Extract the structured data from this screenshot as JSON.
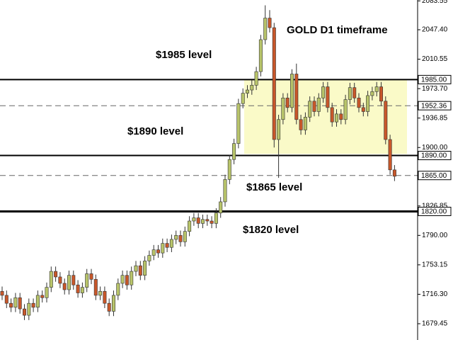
{
  "chart_data": {
    "type": "candlestick",
    "title": "GOLD D1 timeframe",
    "annotations": [
      "$1985 level",
      "$1890 level",
      "$1865 level",
      "$1820 level"
    ],
    "open": [
      1720,
      1715,
      1705,
      1700,
      1712,
      1698,
      1690,
      1705,
      1700,
      1715,
      1712,
      1725,
      1745,
      1738,
      1730,
      1722,
      1740,
      1728,
      1718,
      1725,
      1742,
      1735,
      1715,
      1720,
      1705,
      1695,
      1715,
      1730,
      1740,
      1728,
      1745,
      1752,
      1740,
      1758,
      1765,
      1772,
      1768,
      1780,
      1775,
      1785,
      1790,
      1782,
      1795,
      1808,
      1812,
      1805,
      1810,
      1808,
      1805,
      1818,
      1832,
      1860,
      1885,
      1905,
      1955,
      1968,
      1972,
      1978,
      1995,
      2035,
      2062,
      2050,
      1910,
      1935,
      1962,
      1950,
      1992,
      1935,
      1922,
      1938,
      1958,
      1945,
      1962,
      1976,
      1950,
      1932,
      1942,
      1935,
      1960,
      1975,
      1962,
      1950,
      1945,
      1965,
      1970,
      1976,
      1958,
      1910,
      1872
    ],
    "high": [
      1726,
      1721,
      1711,
      1718,
      1718,
      1704,
      1711,
      1711,
      1721,
      1721,
      1731,
      1751,
      1751,
      1744,
      1736,
      1746,
      1746,
      1734,
      1731,
      1748,
      1748,
      1741,
      1726,
      1726,
      1711,
      1721,
      1736,
      1746,
      1746,
      1751,
      1758,
      1758,
      1764,
      1771,
      1778,
      1778,
      1786,
      1786,
      1791,
      1796,
      1796,
      1801,
      1814,
      1818,
      1818,
      1816,
      1816,
      1814,
      1824,
      1838,
      1866,
      1891,
      1911,
      1961,
      1974,
      1978,
      1984,
      2001,
      2041,
      2078,
      2072,
      2056,
      1941,
      1968,
      1968,
      1998,
      2005,
      1941,
      1944,
      1964,
      1964,
      1968,
      1982,
      1982,
      1956,
      1948,
      1948,
      1966,
      1981,
      1981,
      1968,
      1956,
      1971,
      1976,
      1982,
      1982,
      1964,
      1916,
      1878
    ],
    "low": [
      1709,
      1699,
      1694,
      1694,
      1692,
      1684,
      1684,
      1694,
      1694,
      1706,
      1706,
      1719,
      1732,
      1724,
      1716,
      1716,
      1722,
      1712,
      1712,
      1719,
      1729,
      1709,
      1709,
      1699,
      1689,
      1689,
      1709,
      1724,
      1722,
      1722,
      1739,
      1734,
      1734,
      1752,
      1759,
      1762,
      1762,
      1769,
      1769,
      1779,
      1776,
      1776,
      1789,
      1802,
      1799,
      1799,
      1802,
      1799,
      1799,
      1812,
      1826,
      1854,
      1879,
      1899,
      1949,
      1962,
      1966,
      1972,
      1989,
      2029,
      2044,
      1900,
      1862,
      1929,
      1944,
      1944,
      1929,
      1916,
      1916,
      1932,
      1939,
      1939,
      1956,
      1944,
      1926,
      1926,
      1929,
      1929,
      1954,
      1956,
      1944,
      1939,
      1939,
      1959,
      1964,
      1952,
      1904,
      1866,
      1858
    ],
    "close": [
      1715,
      1705,
      1700,
      1712,
      1698,
      1690,
      1705,
      1700,
      1715,
      1712,
      1725,
      1745,
      1738,
      1730,
      1722,
      1740,
      1728,
      1718,
      1725,
      1742,
      1735,
      1715,
      1720,
      1705,
      1695,
      1715,
      1730,
      1740,
      1728,
      1745,
      1752,
      1740,
      1758,
      1765,
      1772,
      1768,
      1780,
      1775,
      1785,
      1790,
      1782,
      1795,
      1808,
      1812,
      1805,
      1810,
      1808,
      1805,
      1818,
      1832,
      1860,
      1885,
      1905,
      1955,
      1968,
      1972,
      1978,
      1995,
      2035,
      2062,
      2050,
      1910,
      1935,
      1962,
      1950,
      1992,
      1935,
      1922,
      1938,
      1958,
      1945,
      1962,
      1976,
      1950,
      1932,
      1942,
      1935,
      1960,
      1975,
      1962,
      1950,
      1945,
      1965,
      1970,
      1976,
      1958,
      1910,
      1872,
      1864
    ],
    "up_color": "#b8c46a",
    "down_color": "#c8572a",
    "wick_color": "#333333",
    "zone": {
      "low": 1892,
      "high": 1985,
      "color": "#fafac8"
    },
    "levels": [
      {
        "value": 1985,
        "label": "1985.00",
        "style": "solid"
      },
      {
        "value": 1952.36,
        "label": "1952.36",
        "style": "dashed"
      },
      {
        "value": 1890,
        "label": "1890.00",
        "style": "solid"
      },
      {
        "value": 1865,
        "label": "1865.00",
        "style": "dashed"
      },
      {
        "value": 1820,
        "label": "1820.00",
        "style": "thick"
      }
    ],
    "ylim": [
      1659.06,
      2084.64
    ],
    "yticks": [
      {
        "value": 2083.55,
        "label": "2083.55"
      },
      {
        "value": 2047.4,
        "label": "2047.40"
      },
      {
        "value": 2010.55,
        "label": "2010.55"
      },
      {
        "value": 1973.7,
        "label": "1973.70"
      },
      {
        "value": 1936.85,
        "label": "1936.85"
      },
      {
        "value": 1900,
        "label": "1900.00"
      },
      {
        "value": 1826.85,
        "label": "1826.85"
      },
      {
        "value": 1790,
        "label": "1790.00"
      },
      {
        "value": 1753.15,
        "label": "1753.15"
      },
      {
        "value": 1716.3,
        "label": "1716.30"
      },
      {
        "value": 1679.45,
        "label": "1679.45"
      }
    ]
  }
}
